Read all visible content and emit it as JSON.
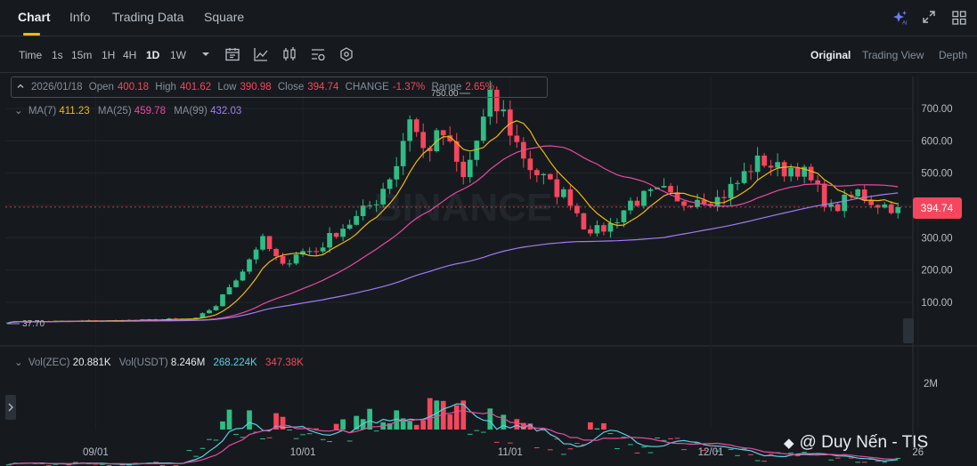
{
  "tabs": [
    {
      "label": "Chart",
      "active": true
    },
    {
      "label": "Info",
      "active": false
    },
    {
      "label": "Trading Data",
      "active": false
    },
    {
      "label": "Square",
      "active": false
    }
  ],
  "top_icons": [
    "ai-sparkle-icon",
    "expand-icon",
    "layout-grid-icon"
  ],
  "timeframes": [
    {
      "label": "Time",
      "active": false
    },
    {
      "label": "15m",
      "active": false
    },
    {
      "label": "1s",
      "active": false
    },
    {
      "label": "1H",
      "active": false
    },
    {
      "label": "4H",
      "active": false
    },
    {
      "label": "1D",
      "active": true
    },
    {
      "label": "1W",
      "active": false
    }
  ],
  "toolbar_icons": [
    "dropdown-caret-icon",
    "calendar-icon",
    "line-chart-icon",
    "candlestick-icon",
    "indicator-settings-icon",
    "hexagon-settings-icon"
  ],
  "views": [
    {
      "label": "Original",
      "active": true
    },
    {
      "label": "Trading View",
      "active": false
    },
    {
      "label": "Depth",
      "active": false
    }
  ],
  "ohlc": {
    "date": "2026/01/18",
    "open_label": "Open",
    "open": "400.18",
    "high_label": "High",
    "high": "401.62",
    "low_label": "Low",
    "low": "390.98",
    "close_label": "Close",
    "close": "394.74",
    "change_label": "CHANGE",
    "change": "-1.37%",
    "range_label": "Range",
    "range": "2.65%"
  },
  "ma": {
    "ma7_label": "MA(7)",
    "ma7": "411.23",
    "ma25_label": "MA(25)",
    "ma25": "459.78",
    "ma99_label": "MA(99)",
    "ma99": "432.03"
  },
  "vol": {
    "label_zec": "Vol(ZEC)",
    "zec": "20.881K",
    "label_usdt": "Vol(USDT)",
    "usdt": "8.246M",
    "ma1": "268.224K",
    "ma2": "347.38K"
  },
  "price_badge": "394.74",
  "high_marker": "750.00",
  "low_marker": "37.70",
  "watermark": "BINANCE",
  "credit": "@ Duy Nến - TIS",
  "colors": {
    "up": "#2ebd85",
    "down": "#f6465d",
    "ma7": "#f0b90b",
    "ma25": "#e84aa1",
    "ma99": "#a37bf7",
    "accent": "#f0b90b"
  },
  "chart_data": {
    "type": "candlestick",
    "interval": "1D",
    "y_ticks": [
      "700.00",
      "600.00",
      "500.00",
      "400.00",
      "300.00",
      "200.00",
      "100.00"
    ],
    "ylim": [
      0,
      760
    ],
    "volume_ticks": [
      "2M"
    ],
    "x_ticks": [
      "09/01",
      "10/01",
      "11/01",
      "12/01",
      "26"
    ],
    "price_path": [
      [
        0,
        40
      ],
      [
        10,
        42
      ],
      [
        20,
        45
      ],
      [
        28,
        50
      ],
      [
        31,
        90
      ],
      [
        33,
        150
      ],
      [
        35,
        200
      ],
      [
        37,
        270
      ],
      [
        38,
        290
      ],
      [
        41,
        210
      ],
      [
        43,
        255
      ],
      [
        46,
        260
      ],
      [
        49,
        320
      ],
      [
        52,
        360
      ],
      [
        55,
        420
      ],
      [
        58,
        530
      ],
      [
        60,
        680
      ],
      [
        62,
        570
      ],
      [
        65,
        620
      ],
      [
        68,
        480
      ],
      [
        70,
        600
      ],
      [
        72,
        720
      ],
      [
        74,
        680
      ],
      [
        76,
        590
      ],
      [
        78,
        520
      ],
      [
        81,
        460
      ],
      [
        84,
        420
      ],
      [
        86,
        340
      ],
      [
        88,
        320
      ],
      [
        90,
        340
      ],
      [
        93,
        410
      ],
      [
        96,
        430
      ],
      [
        98,
        440
      ],
      [
        100,
        400
      ],
      [
        103,
        430
      ],
      [
        106,
        420
      ],
      [
        109,
        470
      ],
      [
        111,
        520
      ],
      [
        113,
        540
      ],
      [
        115,
        510
      ],
      [
        118,
        520
      ],
      [
        120,
        470
      ],
      [
        122,
        420
      ],
      [
        123,
        385
      ],
      [
        125,
        410
      ],
      [
        127,
        440
      ],
      [
        129,
        415
      ],
      [
        131,
        400
      ],
      [
        133,
        395
      ]
    ],
    "volume_path": [
      [
        0,
        0.05
      ],
      [
        25,
        0.06
      ],
      [
        30,
        0.3
      ],
      [
        33,
        0.5
      ],
      [
        37,
        0.7
      ],
      [
        42,
        0.4
      ],
      [
        47,
        0.35
      ],
      [
        52,
        0.45
      ],
      [
        56,
        0.6
      ],
      [
        60,
        1.0
      ],
      [
        63,
        0.7
      ],
      [
        66,
        0.75
      ],
      [
        70,
        0.6
      ],
      [
        74,
        0.5
      ],
      [
        78,
        0.4
      ],
      [
        82,
        0.25
      ],
      [
        86,
        0.45
      ],
      [
        90,
        0.35
      ],
      [
        95,
        0.3
      ],
      [
        100,
        0.25
      ],
      [
        105,
        0.22
      ],
      [
        110,
        0.18
      ],
      [
        115,
        0.15
      ],
      [
        120,
        0.16
      ],
      [
        125,
        0.15
      ],
      [
        129,
        0.12
      ],
      [
        133,
        0.1
      ]
    ]
  }
}
